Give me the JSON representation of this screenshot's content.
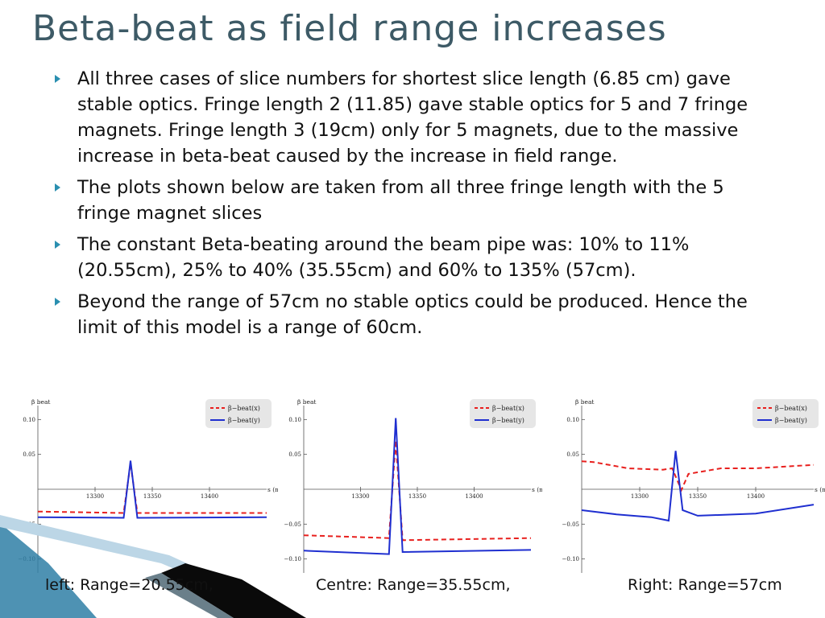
{
  "title": "Beta-beat as field range increases",
  "bullets": [
    "All three cases of slice numbers for shortest slice length (6.85 cm) gave stable optics. Fringe length 2 (11.85) gave stable optics for 5 and 7 fringe magnets. Fringe length 3 (19cm) only for 5 magnets, due to the massive increase in beta-beat caused by the increase in field range.",
    "The plots shown below are taken from all three fringe length with the 5 fringe magnet slices",
    "The constant Beta-beating around the beam pipe was: 10% to 11% (20.55cm),  25% to 40% (35.55cm) and 60% to 135% (57cm).",
    "Beyond the range of 57cm no stable optics could be produced. Hence the limit of this model is a range of 60cm."
  ],
  "captions": {
    "left": "left: Range=20.55cm,",
    "centre": "Centre: Range=35.55cm,",
    "right": "Right: Range=57cm"
  },
  "colors": {
    "title": "#3d5a66",
    "series_x": "#e8201e",
    "series_y": "#1f2fd0",
    "ribbon_dark": "#0a0a0a",
    "ribbon_blue": "#2f7fa6"
  },
  "chart_data": [
    {
      "type": "line",
      "ylabel": "β beat",
      "xlabel": "s (m)",
      "xlim": [
        13250,
        13450
      ],
      "ylim": [
        -0.12,
        0.12
      ],
      "xticks": [
        13300,
        13350,
        13400
      ],
      "yticks": [
        -0.1,
        -0.05,
        0.05,
        0.1
      ],
      "ytick_labels": [
        "−0.10",
        "−0.05",
        "0.05",
        "0.10"
      ],
      "legend_position": "top-right",
      "series": [
        {
          "name": "β−beat(x)",
          "style": "dashed",
          "x": [
            13250,
            13325,
            13331,
            13337,
            13450
          ],
          "y": [
            -0.032,
            -0.034,
            0.037,
            -0.034,
            -0.034
          ]
        },
        {
          "name": "β−beat(y)",
          "style": "solid",
          "x": [
            13250,
            13325,
            13331,
            13337,
            13450
          ],
          "y": [
            -0.04,
            -0.041,
            0.041,
            -0.041,
            -0.04
          ]
        }
      ]
    },
    {
      "type": "line",
      "ylabel": "β beat",
      "xlabel": "s (m)",
      "xlim": [
        13250,
        13450
      ],
      "ylim": [
        -0.12,
        0.12
      ],
      "xticks": [
        13300,
        13350,
        13400
      ],
      "yticks": [
        -0.1,
        -0.05,
        0.05,
        0.1
      ],
      "ytick_labels": [
        "−0.10",
        "−0.05",
        "0.05",
        "0.10"
      ],
      "legend_position": "top-right",
      "series": [
        {
          "name": "β−beat(x)",
          "style": "dashed",
          "x": [
            13250,
            13325,
            13331,
            13337,
            13450
          ],
          "y": [
            -0.066,
            -0.07,
            0.07,
            -0.073,
            -0.07
          ]
        },
        {
          "name": "β−beat(y)",
          "style": "solid",
          "x": [
            13250,
            13325,
            13331,
            13337,
            13450
          ],
          "y": [
            -0.088,
            -0.093,
            0.102,
            -0.09,
            -0.087
          ]
        }
      ]
    },
    {
      "type": "line",
      "ylabel": "β beat",
      "xlabel": "s (m)",
      "xlim": [
        13250,
        13450
      ],
      "ylim": [
        -0.12,
        0.12
      ],
      "xticks": [
        13300,
        13350,
        13400
      ],
      "yticks": [
        -0.1,
        -0.05,
        0.05,
        0.1
      ],
      "ytick_labels": [
        "−0.10",
        "−0.05",
        "0.05",
        "0.10"
      ],
      "legend_position": "top-right",
      "series": [
        {
          "name": "β−beat(x)",
          "style": "dashed",
          "x": [
            13250,
            13260,
            13290,
            13320,
            13328,
            13336,
            13342,
            13370,
            13400,
            13450
          ],
          "y": [
            0.04,
            0.039,
            0.03,
            0.028,
            0.03,
            -0.001,
            0.022,
            0.03,
            0.03,
            0.035
          ]
        },
        {
          "name": "β−beat(y)",
          "style": "solid",
          "x": [
            13250,
            13280,
            13310,
            13325,
            13331,
            13337,
            13350,
            13400,
            13450
          ],
          "y": [
            -0.03,
            -0.036,
            -0.04,
            -0.045,
            0.055,
            -0.03,
            -0.038,
            -0.035,
            -0.022
          ]
        }
      ]
    }
  ]
}
